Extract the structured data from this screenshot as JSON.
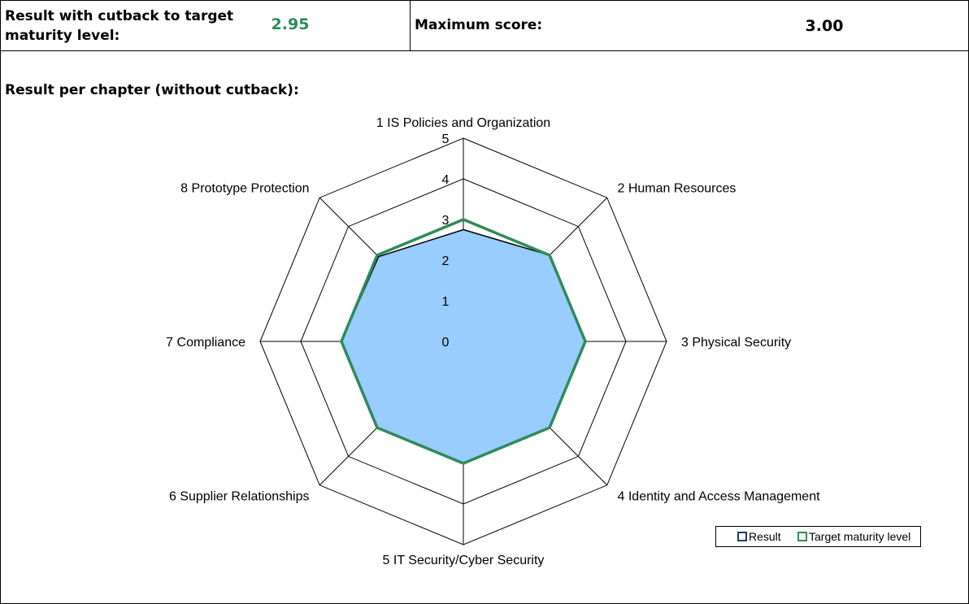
{
  "summary": {
    "result_label": "Result with cutback to target maturity level:",
    "result_value": "2.95",
    "max_label": "Maximum score:",
    "max_value": "3.00"
  },
  "chapter_heading": "Result per chapter (without cutback):",
  "colors": {
    "result_fill": "#99ccff",
    "result_line": "#000000",
    "target_line": "#2e8b57",
    "accent_text": "#2e8b57",
    "grid": "#000000",
    "legend_result_swatch": "#1f3864"
  },
  "chart_data": {
    "type": "radar",
    "title": "",
    "axis_min": 0,
    "axis_max": 5,
    "ticks": [
      "0",
      "1",
      "2",
      "3",
      "4",
      "5"
    ],
    "categories": [
      "1 IS Policies and Organization",
      "2 Human Resources",
      "3 Physical Security",
      "4 Identity and Access Management",
      "5 IT Security/Cyber Security",
      "6 Supplier Relationships",
      "7 Compliance",
      "8 Prototype Protection"
    ],
    "series": [
      {
        "name": "Result",
        "values": [
          2.75,
          3,
          3,
          3,
          3,
          3,
          3,
          2.95
        ]
      },
      {
        "name": "Target maturity level",
        "values": [
          3,
          3,
          3,
          3,
          3,
          3,
          3,
          3
        ]
      }
    ],
    "legend": [
      "Result",
      "Target maturity level"
    ],
    "legend_position": "bottom-right"
  }
}
